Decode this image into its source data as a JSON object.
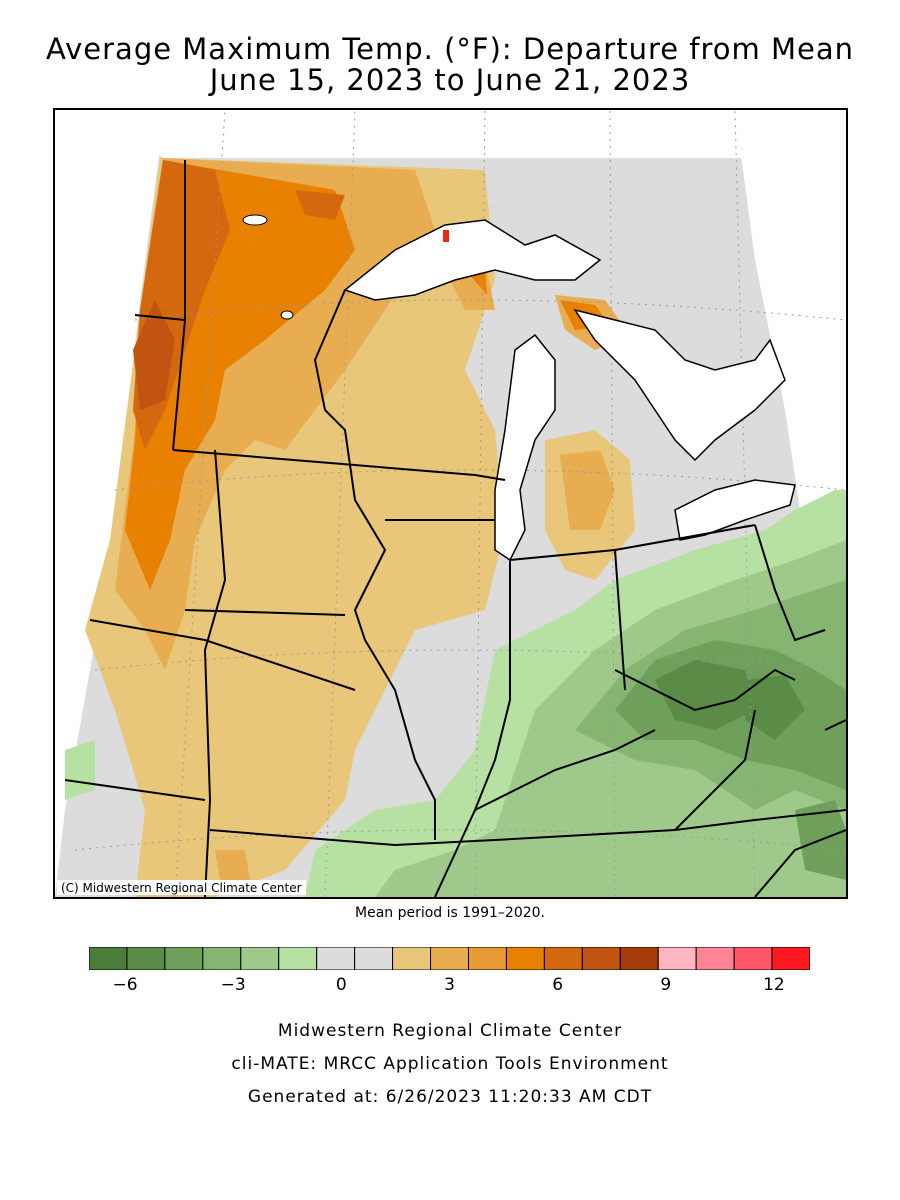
{
  "title_line1": "Average Maximum Temp. (°F): Departure from Mean",
  "title_line2": "June 15, 2023 to June 21, 2023",
  "copyright": "(C) Midwestern Regional Climate Center",
  "mean_note": "Mean period is 1991–2020.",
  "legend": {
    "colors": [
      "#4a7c3a",
      "#5a8c47",
      "#6fa05b",
      "#86b471",
      "#9fc98a",
      "#b7e0a3",
      "#dcdcdc",
      "#dcdcdc",
      "#e8c67a",
      "#e8ad50",
      "#e89a34",
      "#e88000",
      "#d4680f",
      "#c05410",
      "#a63c0a",
      "#ffb6c1",
      "#ff8494",
      "#ff5668",
      "#ff1a20"
    ],
    "ticks": [
      {
        "label": "−6",
        "value": -6
      },
      {
        "label": "−3",
        "value": -3
      },
      {
        "label": "0",
        "value": 0
      },
      {
        "label": "3",
        "value": 3
      },
      {
        "label": "6",
        "value": 6
      },
      {
        "label": "9",
        "value": 9
      },
      {
        "label": "12",
        "value": 12
      }
    ],
    "min": -7,
    "max": 13
  },
  "footer_line1": "Midwestern Regional Climate Center",
  "footer_line2": "cli-MATE: MRCC Application Tools Environment",
  "footer_line3": "Generated at: 6/26/2023 11:20:33 AM CDT"
}
